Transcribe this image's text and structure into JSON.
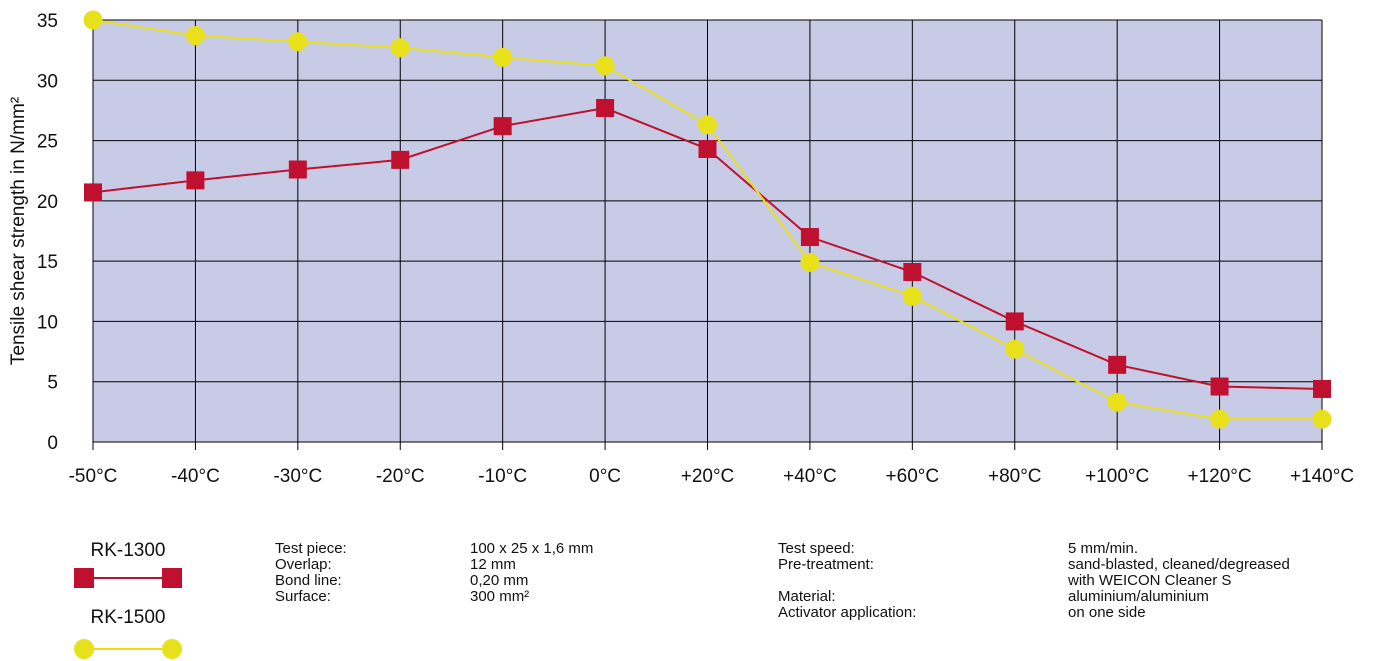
{
  "chart_data": {
    "type": "line",
    "ylabel": "Tensile shear strength in N/mm²",
    "x": [
      "-50°C",
      "-40°C",
      "-30°C",
      "-20°C",
      "-10°C",
      "0°C",
      "+20°C",
      "+40°C",
      "+60°C",
      "+80°C",
      "+100°C",
      "+120°C",
      "+140°C"
    ],
    "yticks": [
      "0",
      "5",
      "10",
      "15",
      "20",
      "25",
      "30",
      "35"
    ],
    "ylim": [
      0,
      35
    ],
    "grid": true,
    "background": "#c8cbe6",
    "series": [
      {
        "name": "RK-1300",
        "marker": "square",
        "color": "#c0102f",
        "values": [
          20.7,
          21.7,
          22.6,
          23.4,
          26.2,
          27.7,
          24.3,
          17.0,
          14.1,
          10.0,
          6.4,
          4.6,
          4.4
        ]
      },
      {
        "name": "RK-1500",
        "marker": "circle",
        "color": "#e8e01a",
        "values": [
          35.0,
          33.7,
          33.2,
          32.7,
          31.9,
          31.2,
          26.3,
          14.9,
          12.1,
          7.7,
          3.3,
          1.9,
          1.9
        ]
      }
    ]
  },
  "specs_left": {
    "labels": [
      "Test piece:",
      "Overlap:",
      "Bond line:",
      "Surface:"
    ],
    "values": [
      "100 x 25 x 1,6 mm",
      "12 mm",
      "0,20 mm",
      "300 mm²"
    ]
  },
  "specs_right": {
    "labels": [
      "Test speed:",
      "Pre-treatment:",
      "",
      "Material:",
      "Activator application:"
    ],
    "values": [
      "5 mm/min.",
      "sand-blasted, cleaned/degreased",
      "with WEICON Cleaner S",
      "aluminium/aluminium",
      "on one side"
    ]
  }
}
